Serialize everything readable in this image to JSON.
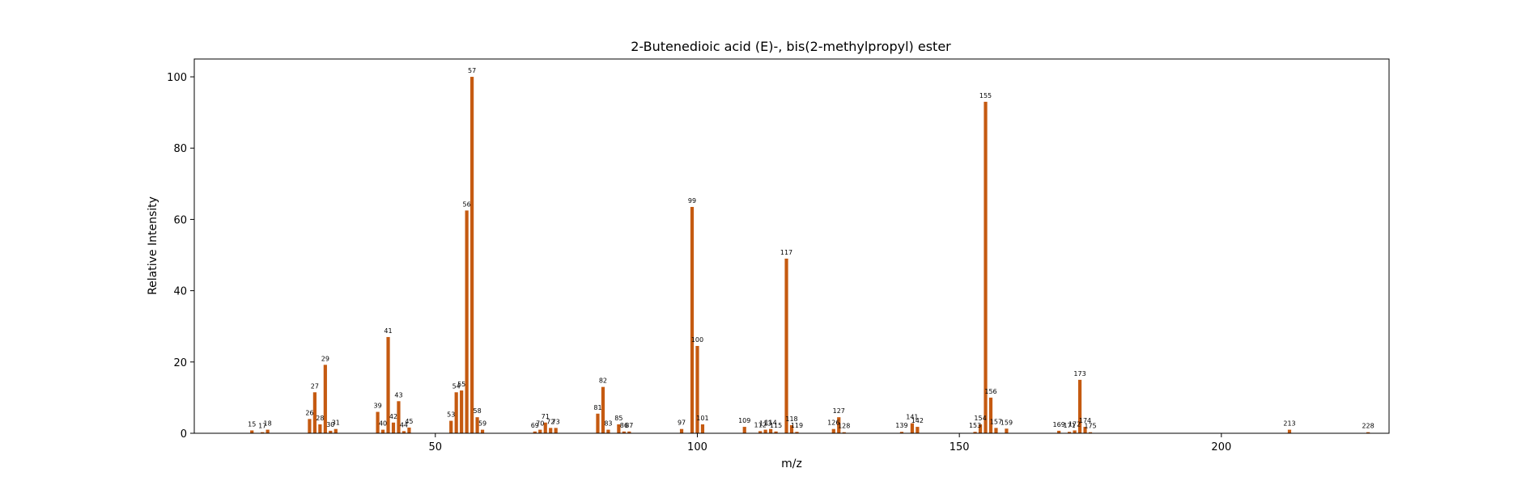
{
  "chart_data": {
    "type": "bar",
    "title": "2-Butenedioic acid (E)-, bis(2-methylpropyl) ester",
    "xlabel": "m/z",
    "ylabel": "Relative Intensity",
    "xlim": [
      4,
      232
    ],
    "ylim": [
      0,
      105
    ],
    "xticks": [
      50,
      100,
      150,
      200
    ],
    "yticks": [
      0,
      20,
      40,
      60,
      80,
      100
    ],
    "grid": false,
    "bar_color": "#c55a11",
    "peaks": [
      {
        "mz": 15,
        "intensity": 0.8,
        "label": "15"
      },
      {
        "mz": 17,
        "intensity": 0.3,
        "label": "17"
      },
      {
        "mz": 18,
        "intensity": 1.0,
        "label": "18"
      },
      {
        "mz": 26,
        "intensity": 4.0,
        "label": "26"
      },
      {
        "mz": 27,
        "intensity": 11.5,
        "label": "27"
      },
      {
        "mz": 28,
        "intensity": 2.5,
        "label": "28"
      },
      {
        "mz": 29,
        "intensity": 19.2,
        "label": "29"
      },
      {
        "mz": 30,
        "intensity": 0.7,
        "label": "30"
      },
      {
        "mz": 31,
        "intensity": 1.2,
        "label": "31"
      },
      {
        "mz": 39,
        "intensity": 6.0,
        "label": "39"
      },
      {
        "mz": 40,
        "intensity": 1.0,
        "label": "40"
      },
      {
        "mz": 41,
        "intensity": 27.0,
        "label": "41"
      },
      {
        "mz": 42,
        "intensity": 3.0,
        "label": "42"
      },
      {
        "mz": 43,
        "intensity": 9.0,
        "label": "43"
      },
      {
        "mz": 44,
        "intensity": 0.6,
        "label": "44"
      },
      {
        "mz": 45,
        "intensity": 1.6,
        "label": "45"
      },
      {
        "mz": 53,
        "intensity": 3.5,
        "label": "53"
      },
      {
        "mz": 54,
        "intensity": 11.5,
        "label": "54"
      },
      {
        "mz": 55,
        "intensity": 12.0,
        "label": "55"
      },
      {
        "mz": 56,
        "intensity": 62.5,
        "label": "56"
      },
      {
        "mz": 57,
        "intensity": 100,
        "label": "57"
      },
      {
        "mz": 58,
        "intensity": 4.5,
        "label": "58"
      },
      {
        "mz": 59,
        "intensity": 1.0,
        "label": "59"
      },
      {
        "mz": 69,
        "intensity": 0.5,
        "label": "69"
      },
      {
        "mz": 70,
        "intensity": 1.0,
        "label": "70"
      },
      {
        "mz": 71,
        "intensity": 3.0,
        "label": "71"
      },
      {
        "mz": 72,
        "intensity": 1.5,
        "label": "72"
      },
      {
        "mz": 73,
        "intensity": 1.5,
        "label": "73"
      },
      {
        "mz": 81,
        "intensity": 5.5,
        "label": "81"
      },
      {
        "mz": 82,
        "intensity": 13.0,
        "label": "82"
      },
      {
        "mz": 83,
        "intensity": 1.0,
        "label": "83"
      },
      {
        "mz": 85,
        "intensity": 2.5,
        "label": "85"
      },
      {
        "mz": 86,
        "intensity": 0.5,
        "label": "86"
      },
      {
        "mz": 87,
        "intensity": 0.5,
        "label": "87"
      },
      {
        "mz": 97,
        "intensity": 1.2,
        "label": "97"
      },
      {
        "mz": 99,
        "intensity": 63.5,
        "label": "99"
      },
      {
        "mz": 100,
        "intensity": 24.5,
        "label": "100"
      },
      {
        "mz": 101,
        "intensity": 2.5,
        "label": "101"
      },
      {
        "mz": 109,
        "intensity": 1.8,
        "label": "109"
      },
      {
        "mz": 112,
        "intensity": 0.6,
        "label": "112"
      },
      {
        "mz": 113,
        "intensity": 1.0,
        "label": "113"
      },
      {
        "mz": 114,
        "intensity": 1.2,
        "label": "114"
      },
      {
        "mz": 115,
        "intensity": 0.5,
        "label": "115"
      },
      {
        "mz": 117,
        "intensity": 49.0,
        "label": "117"
      },
      {
        "mz": 118,
        "intensity": 2.3,
        "label": "118"
      },
      {
        "mz": 119,
        "intensity": 0.4,
        "label": "119"
      },
      {
        "mz": 126,
        "intensity": 1.2,
        "label": "126"
      },
      {
        "mz": 127,
        "intensity": 4.5,
        "label": "127"
      },
      {
        "mz": 128,
        "intensity": 0.3,
        "label": "128"
      },
      {
        "mz": 139,
        "intensity": 0.4,
        "label": "139"
      },
      {
        "mz": 141,
        "intensity": 2.8,
        "label": "141"
      },
      {
        "mz": 142,
        "intensity": 1.8,
        "label": "142"
      },
      {
        "mz": 153,
        "intensity": 0.4,
        "label": "153"
      },
      {
        "mz": 154,
        "intensity": 2.5,
        "label": "154"
      },
      {
        "mz": 155,
        "intensity": 93.0,
        "label": "155"
      },
      {
        "mz": 156,
        "intensity": 10.0,
        "label": "156"
      },
      {
        "mz": 157,
        "intensity": 1.5,
        "label": "157"
      },
      {
        "mz": 159,
        "intensity": 1.3,
        "label": "159"
      },
      {
        "mz": 169,
        "intensity": 0.7,
        "label": "169"
      },
      {
        "mz": 171,
        "intensity": 0.4,
        "label": "171"
      },
      {
        "mz": 172,
        "intensity": 0.8,
        "label": "172"
      },
      {
        "mz": 173,
        "intensity": 15.0,
        "label": "173"
      },
      {
        "mz": 174,
        "intensity": 1.8,
        "label": "174"
      },
      {
        "mz": 175,
        "intensity": 0.3,
        "label": "175"
      },
      {
        "mz": 213,
        "intensity": 1.0,
        "label": "213"
      },
      {
        "mz": 228,
        "intensity": 0.3,
        "label": "228"
      }
    ]
  }
}
